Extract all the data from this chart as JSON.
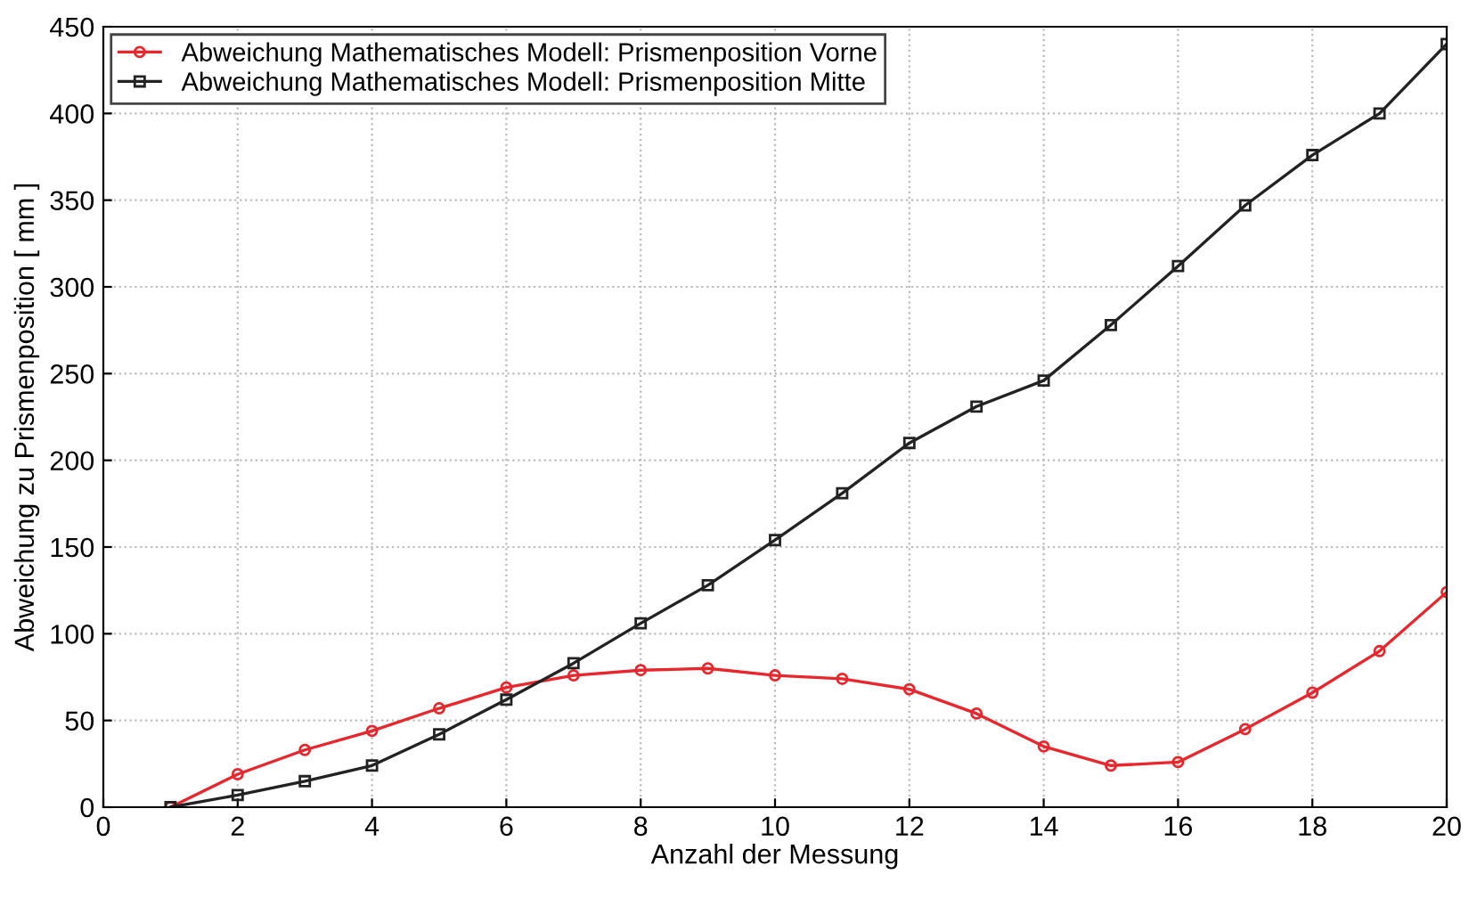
{
  "chart_data": {
    "type": "line",
    "xlabel": "Anzahl der Messung",
    "ylabel": "Abweichung zu Prismenposition [ mm ]",
    "x": [
      1,
      2,
      3,
      4,
      5,
      6,
      7,
      8,
      9,
      10,
      11,
      12,
      13,
      14,
      15,
      16,
      17,
      18,
      19,
      20
    ],
    "series": [
      {
        "name": "Abweichung Mathematisches Modell: Prismenposition Vorne",
        "color": "#e8262c",
        "marker": "circle",
        "values": [
          0,
          19,
          33,
          44,
          57,
          69,
          76,
          79,
          80,
          76,
          74,
          68,
          54,
          35,
          24,
          26,
          45,
          66,
          90,
          124
        ]
      },
      {
        "name": "Abweichung Mathematisches Modell: Prismenposition Mitte",
        "color": "#222222",
        "marker": "square",
        "values": [
          0,
          7,
          15,
          24,
          42,
          62,
          83,
          106,
          128,
          154,
          181,
          210,
          231,
          246,
          278,
          312,
          347,
          376,
          400,
          440
        ]
      }
    ],
    "xlim": [
      0,
      20
    ],
    "xticks": [
      0,
      2,
      4,
      6,
      8,
      10,
      12,
      14,
      16,
      18,
      20
    ],
    "ylim": [
      0,
      450
    ],
    "yticks": [
      0,
      50,
      100,
      150,
      200,
      250,
      300,
      350,
      400,
      450
    ],
    "grid": true,
    "legend": "top left",
    "line_style": "solid"
  }
}
